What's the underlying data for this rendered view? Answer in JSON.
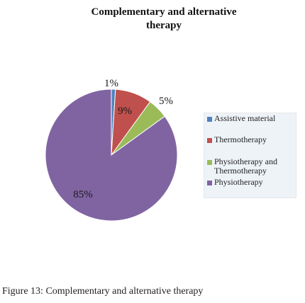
{
  "chart_data": {
    "type": "pie",
    "title": "Complementary  and alternative\ntherapy",
    "categories": [
      "Assistive material",
      "Thermotherapy",
      "Physiotherapy and Thermotherapy",
      "Physiotherapy"
    ],
    "values": [
      1,
      9,
      5,
      85
    ],
    "labels": [
      "1%",
      "9%",
      "5%",
      "85%"
    ],
    "colors": [
      "#4f81bd",
      "#c0504d",
      "#9bbb59",
      "#8064a2"
    ],
    "legend_position": "right"
  },
  "caption": {
    "prefix": "Figure 13:",
    "text": " Complementary and alternative therapy"
  }
}
